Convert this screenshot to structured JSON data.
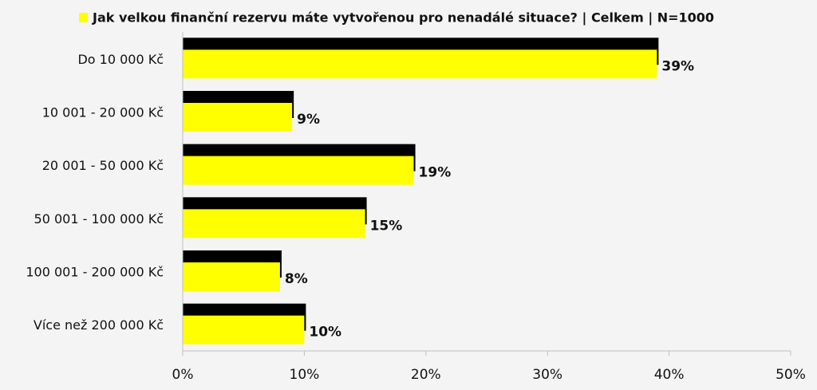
{
  "chart_data": {
    "type": "bar",
    "orientation": "horizontal",
    "categories": [
      "Do 10 000 Kč",
      "10 001 - 20 000 Kč",
      "20 001 - 50 000 Kč",
      "50 001 - 100 000 Kč",
      "100 001 - 200 000 Kč",
      "Více než 200 000 Kč"
    ],
    "series": [
      {
        "name": "Jak velkou finanční rezervu máte vytvořenou pro nenadálé situace? | Celkem | N=1000",
        "color": "#ffff00",
        "shadow_color": "#000000",
        "values": [
          39,
          9,
          19,
          15,
          8,
          10
        ],
        "value_labels": [
          "39%",
          "9%",
          "19%",
          "15%",
          "8%",
          "10%"
        ]
      }
    ],
    "xlim": [
      0,
      50
    ],
    "xticks": [
      {
        "value": 0,
        "label": "0%"
      },
      {
        "value": 10,
        "label": "10%"
      },
      {
        "value": 20,
        "label": "20%"
      },
      {
        "value": 30,
        "label": "30%"
      },
      {
        "value": 40,
        "label": "40%"
      },
      {
        "value": 50,
        "label": "50%"
      }
    ],
    "legend": "top"
  }
}
